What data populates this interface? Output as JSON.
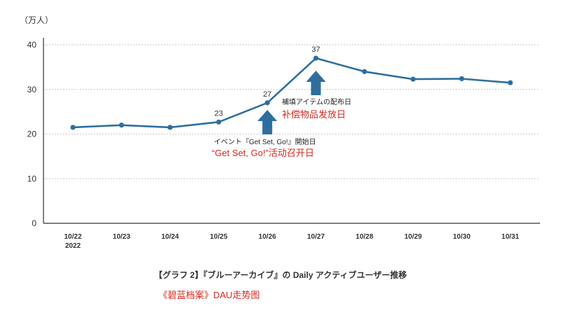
{
  "chart_data": {
    "type": "line",
    "unit_label": "（万人）",
    "categories": [
      "10/22",
      "10/23",
      "10/24",
      "10/25",
      "10/26",
      "10/27",
      "10/28",
      "10/29",
      "10/30",
      "10/31"
    ],
    "first_category_year": "2022",
    "values": [
      21.5,
      22,
      21.5,
      22.7,
      27,
      37,
      34,
      32.3,
      32.4,
      31.5
    ],
    "data_labels": [
      {
        "index": 3,
        "text": "23"
      },
      {
        "index": 4,
        "text": "27"
      },
      {
        "index": 5,
        "text": "37"
      }
    ],
    "ylim": [
      0,
      40
    ],
    "yticks": [
      0,
      10,
      20,
      30,
      40
    ],
    "grid": true,
    "line_color": "#2e6e9e",
    "arrow_color": "#2e6e9e",
    "annotations": [
      {
        "index": 5,
        "ja": "補填アイテムの配布日",
        "zh": "补偿物品发放日"
      },
      {
        "index": 4,
        "ja": "イベント『Get Set, Go!』開始日",
        "zh": "“Get Set, Go!”活动召开日"
      }
    ],
    "caption_ja": "【グラフ 2】『ブルーアーカイブ』の Daily アクティブユーザー推移",
    "caption_zh": "《碧蓝档案》DAU走势图"
  }
}
